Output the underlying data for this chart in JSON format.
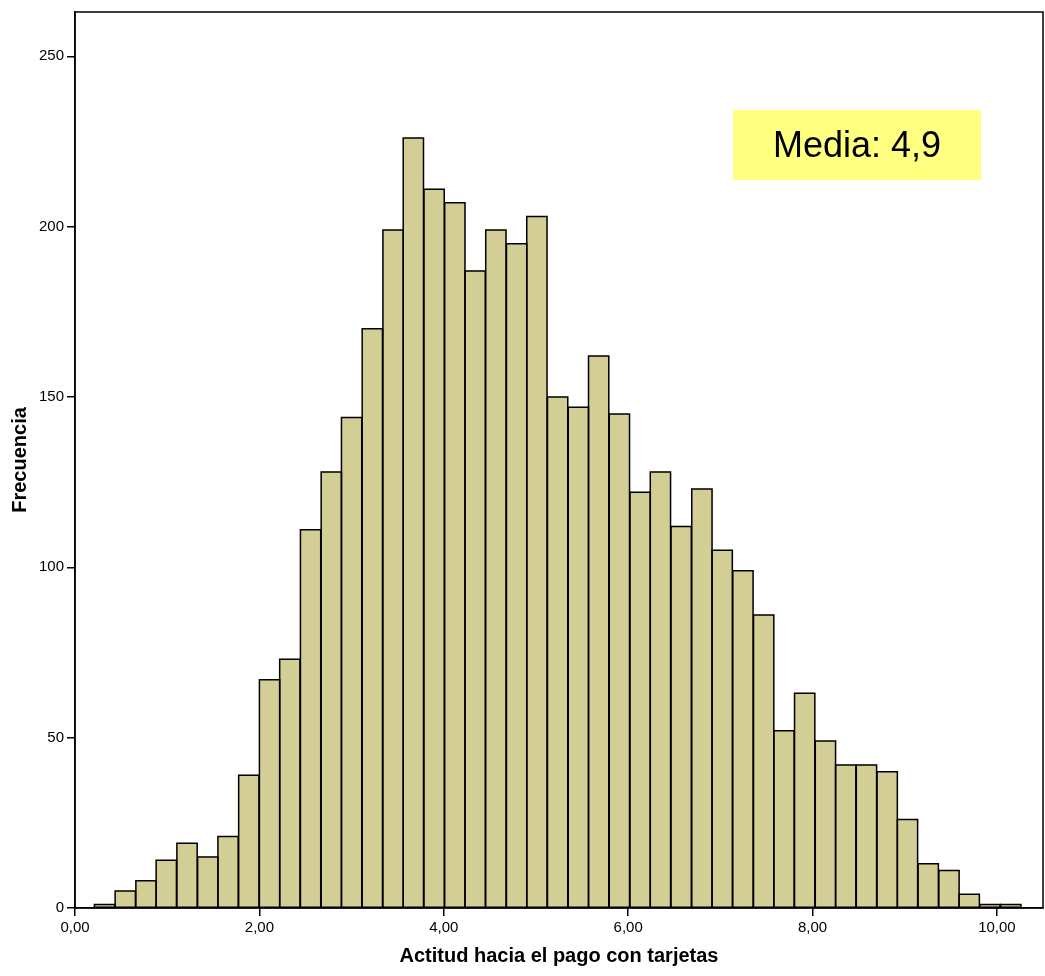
{
  "chart_data": {
    "type": "histogram",
    "xlabel": "Actitud hacia el pago con tarjetas",
    "ylabel": "Frecuencia",
    "annotations": [
      "Media: 4,9"
    ],
    "bins": [
      0.21,
      0.43,
      0.66,
      0.88,
      1.1,
      1.33,
      1.55,
      1.77,
      2.0,
      2.22,
      2.44,
      2.67,
      2.89,
      3.11,
      3.34,
      3.56,
      3.78,
      4.01,
      4.23,
      4.45,
      4.68,
      4.9,
      5.12,
      5.35,
      5.57,
      5.79,
      6.02,
      6.24,
      6.46,
      6.69,
      6.91,
      7.13,
      7.36,
      7.58,
      7.8,
      8.03,
      8.25,
      8.47,
      8.7,
      8.92,
      9.14,
      9.37,
      9.59,
      9.81,
      10.04,
      10.26
    ],
    "values": [
      1,
      5,
      8,
      14,
      19,
      15,
      21,
      39,
      67,
      73,
      111,
      128,
      144,
      170,
      199,
      226,
      211,
      207,
      187,
      199,
      195,
      203,
      150,
      147,
      162,
      145,
      122,
      128,
      112,
      123,
      105,
      99,
      86,
      52,
      63,
      49,
      42,
      42,
      40,
      26,
      13,
      11,
      4,
      1,
      1
    ],
    "color": "#d3cd96",
    "xlim": [
      0,
      10.5
    ],
    "xticks": [
      {
        "value": 0,
        "label": "0,00"
      },
      {
        "value": 2,
        "label": "2,00"
      },
      {
        "value": 4,
        "label": "4,00"
      },
      {
        "value": 6,
        "label": "6,00"
      },
      {
        "value": 8,
        "label": "8,00"
      },
      {
        "value": 10,
        "label": "10,00"
      }
    ],
    "ylim": [
      0,
      263
    ],
    "yticks": [
      0,
      50,
      100,
      150,
      200,
      250
    ],
    "grid": false
  }
}
